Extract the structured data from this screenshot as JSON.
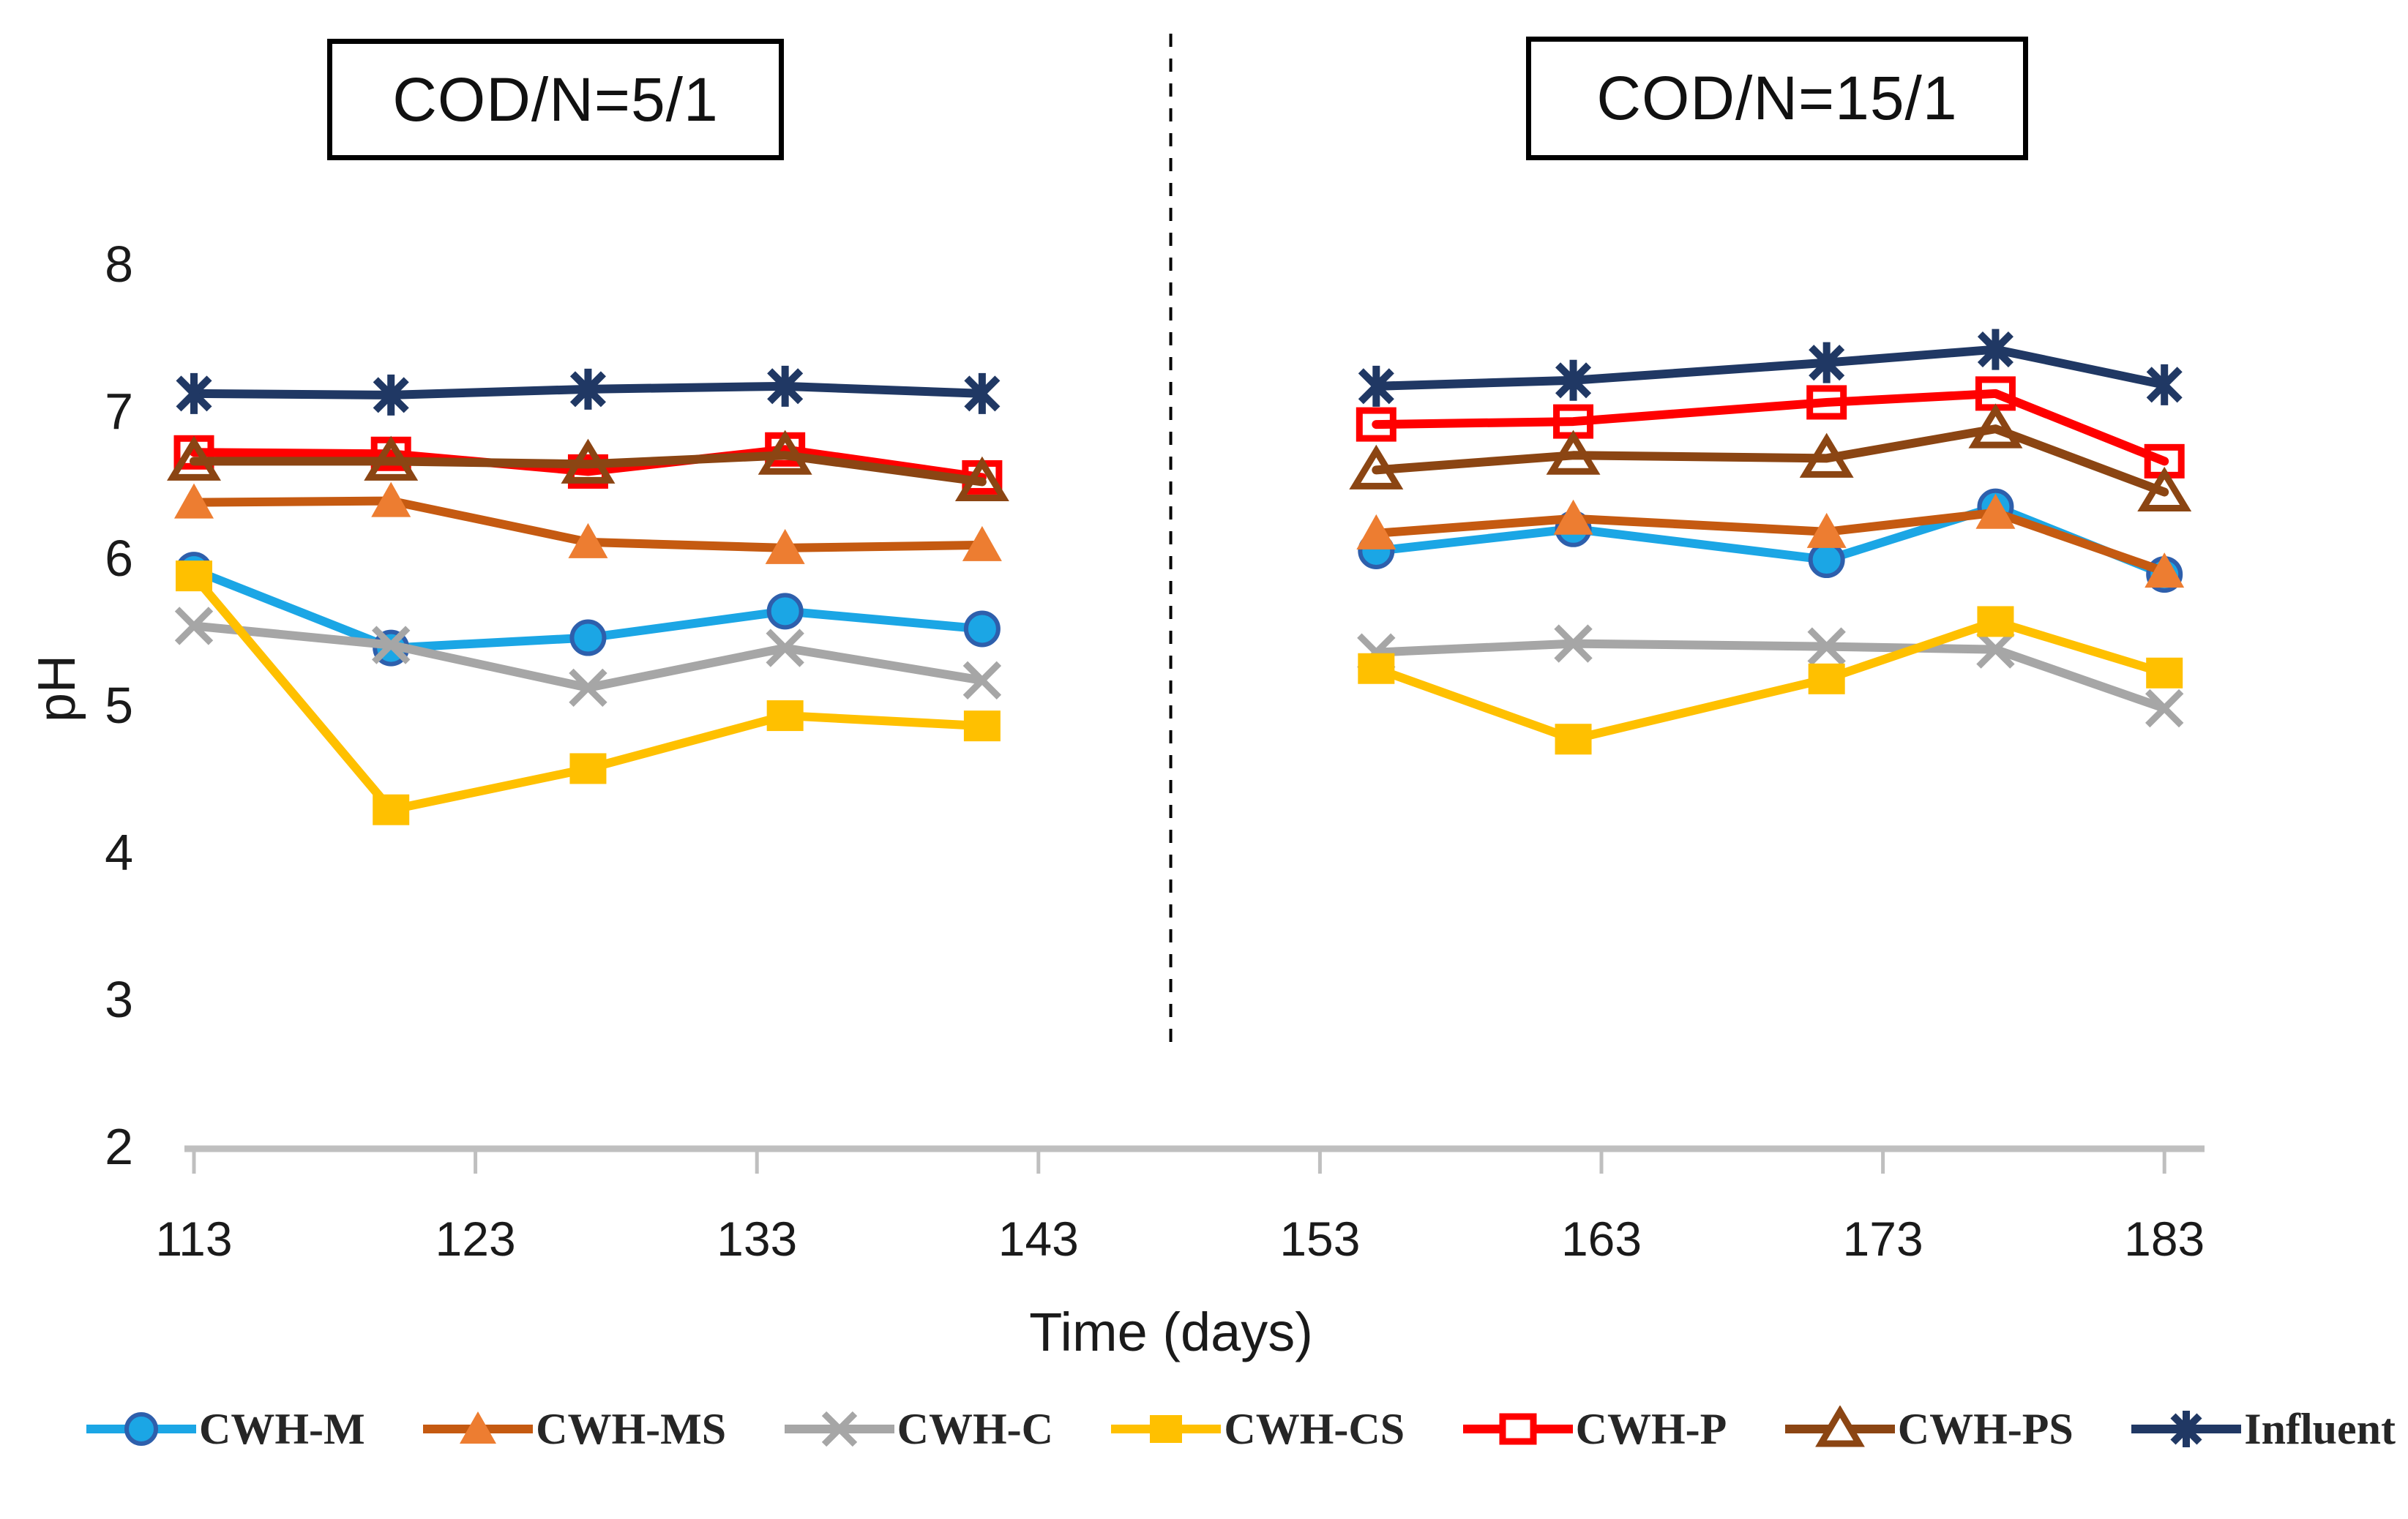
{
  "chart_data": {
    "type": "line",
    "panel_labels": [
      "COD/N=5/1",
      "COD/N=15/1"
    ],
    "xlabel": "Time (days)",
    "ylabel": "pH",
    "ylim": [
      2,
      8
    ],
    "y_ticks": [
      2,
      3,
      4,
      5,
      6,
      7,
      8
    ],
    "x_ticks": [
      113,
      123,
      133,
      143,
      153,
      163,
      173,
      183
    ],
    "xlim": [
      112,
      185
    ],
    "grid": "off",
    "legend_position": "bottom",
    "divider_day": 147.7,
    "axis_color": "#BFBFBF",
    "text_color": "#1a1a1a",
    "series": [
      {
        "name": "CWH-M",
        "marker": "circle",
        "marker_fill": "#1BA6E5",
        "marker_stroke": "#2E5FAC",
        "line_color": "#1BA6E5",
        "segments": [
          {
            "x": [
              113,
              120,
              127,
              134,
              141
            ],
            "y": [
              5.92,
              5.39,
              5.46,
              5.64,
              5.52
            ]
          },
          {
            "x": [
              155,
              162,
              171,
              177,
              183
            ],
            "y": [
              6.05,
              6.2,
              5.99,
              6.35,
              5.89
            ]
          }
        ]
      },
      {
        "name": "CWH-MS",
        "marker": "triangle",
        "marker_fill": "#ED7D31",
        "marker_stroke": "none",
        "line_color": "#C55A11",
        "segments": [
          {
            "x": [
              113,
              120,
              127,
              134,
              141
            ],
            "y": [
              6.38,
              6.39,
              6.11,
              6.07,
              6.09
            ]
          },
          {
            "x": [
              155,
              162,
              171,
              177,
              183
            ],
            "y": [
              6.17,
              6.27,
              6.18,
              6.31,
              5.91
            ]
          }
        ]
      },
      {
        "name": "CWH-C",
        "marker": "x",
        "marker_fill": "none",
        "marker_stroke": "#A6A6A6",
        "line_color": "#A6A6A6",
        "segments": [
          {
            "x": [
              113,
              120,
              127,
              134,
              141
            ],
            "y": [
              5.54,
              5.41,
              5.12,
              5.39,
              5.17
            ]
          },
          {
            "x": [
              155,
              162,
              171,
              177,
              183
            ],
            "y": [
              5.36,
              5.42,
              5.4,
              5.38,
              4.98
            ]
          }
        ]
      },
      {
        "name": "CWH-CS",
        "marker": "square",
        "marker_fill": "#FFC000",
        "marker_stroke": "none",
        "line_color": "#FFC000",
        "segments": [
          {
            "x": [
              113,
              120,
              127,
              134,
              141
            ],
            "y": [
              5.88,
              4.29,
              4.57,
              4.93,
              4.86
            ]
          },
          {
            "x": [
              155,
              162,
              171,
              177,
              183
            ],
            "y": [
              5.25,
              4.77,
              5.18,
              5.57,
              5.22
            ]
          }
        ]
      },
      {
        "name": "CWH-P",
        "marker": "open-square",
        "marker_fill": "none",
        "marker_stroke": "#FF0000",
        "line_color": "#FF0000",
        "segments": [
          {
            "x": [
              113,
              120,
              127,
              134,
              141
            ],
            "y": [
              6.72,
              6.71,
              6.59,
              6.74,
              6.55
            ]
          },
          {
            "x": [
              155,
              162,
              171,
              177,
              183
            ],
            "y": [
              6.91,
              6.93,
              7.06,
              7.12,
              6.66
            ]
          }
        ]
      },
      {
        "name": "CWH-PS",
        "marker": "open-triangle",
        "marker_fill": "none",
        "marker_stroke": "#8B4513",
        "line_color": "#8B4513",
        "segments": [
          {
            "x": [
              113,
              120,
              127,
              134,
              141
            ],
            "y": [
              6.66,
              6.66,
              6.64,
              6.7,
              6.52
            ]
          },
          {
            "x": [
              155,
              162,
              171,
              177,
              183
            ],
            "y": [
              6.6,
              6.7,
              6.68,
              6.88,
              6.45
            ]
          }
        ]
      },
      {
        "name": "Influent",
        "marker": "asterisk",
        "marker_fill": "none",
        "marker_stroke": "#203864",
        "line_color": "#203864",
        "segments": [
          {
            "x": [
              113,
              120,
              127,
              134,
              141
            ],
            "y": [
              7.12,
              7.11,
              7.15,
              7.17,
              7.12
            ]
          },
          {
            "x": [
              155,
              162,
              171,
              177,
              183
            ],
            "y": [
              7.17,
              7.21,
              7.33,
              7.42,
              7.18
            ]
          }
        ]
      }
    ]
  }
}
